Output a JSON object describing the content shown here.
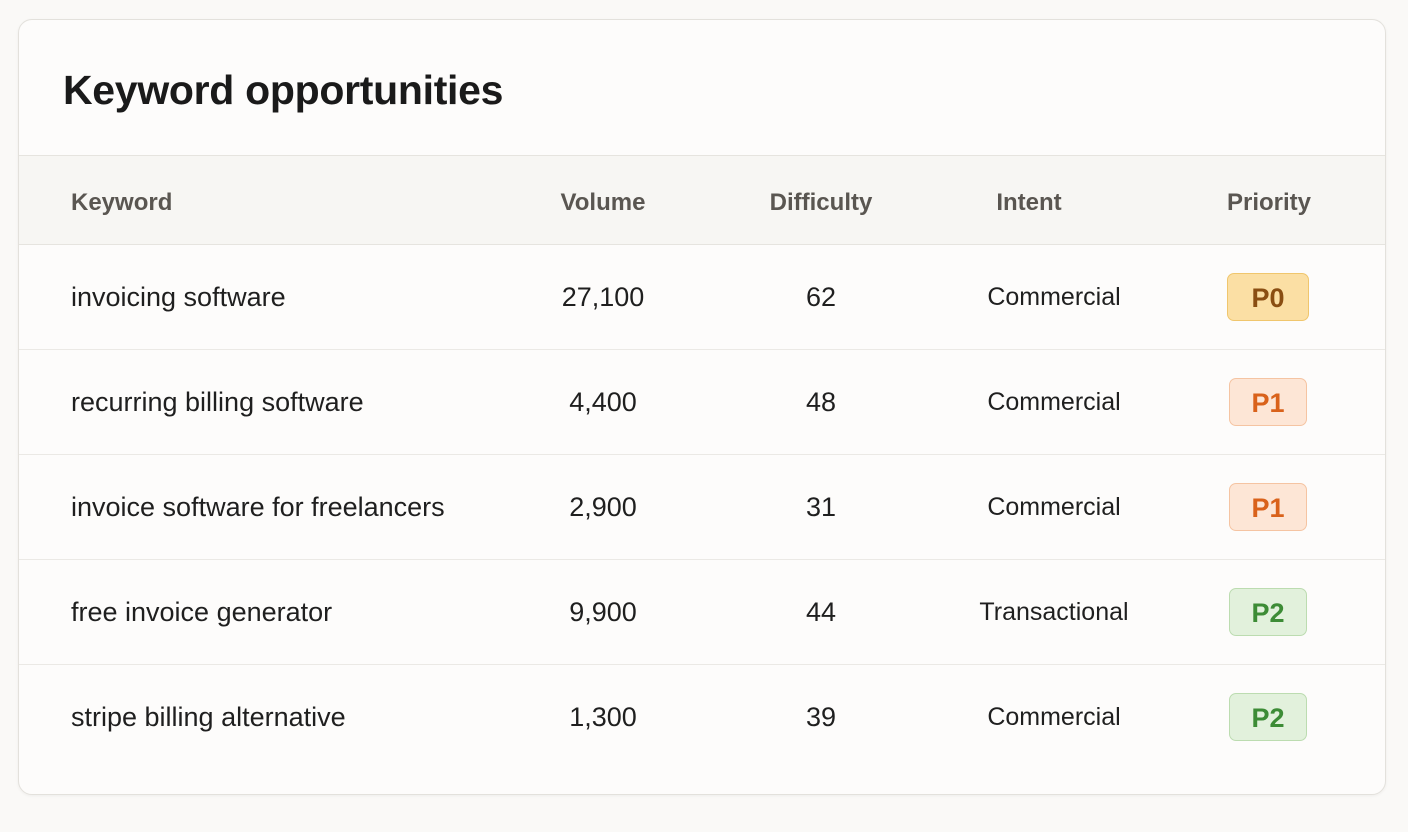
{
  "title": "Keyword opportunities",
  "columns": {
    "keyword": "Keyword",
    "volume": "Volume",
    "difficulty": "Difficulty",
    "intent": "Intent",
    "priority": "Priority"
  },
  "rows": [
    {
      "keyword": "invoicing software",
      "volume": "27,100",
      "difficulty": "62",
      "intent": "Commercial",
      "priority": "P0"
    },
    {
      "keyword": "recurring billing software",
      "volume": "4,400",
      "difficulty": "48",
      "intent": "Commercial",
      "priority": "P1"
    },
    {
      "keyword": "invoice software for freelancers",
      "volume": "2,900",
      "difficulty": "31",
      "intent": "Commercial",
      "priority": "P1"
    },
    {
      "keyword": "free invoice generator",
      "volume": "9,900",
      "difficulty": "44",
      "intent": "Transactional",
      "priority": "P2"
    },
    {
      "keyword": "stripe billing alternative",
      "volume": "1,300",
      "difficulty": "39",
      "intent": "Commercial",
      "priority": "P2"
    }
  ],
  "priority_colors": {
    "P0": {
      "background": "#fbdfa4",
      "text": "#8a4e12"
    },
    "P1": {
      "background": "#fde6d6",
      "text": "#d9621b"
    },
    "P2": {
      "background": "#e2f1dc",
      "text": "#3d8c36"
    }
  }
}
